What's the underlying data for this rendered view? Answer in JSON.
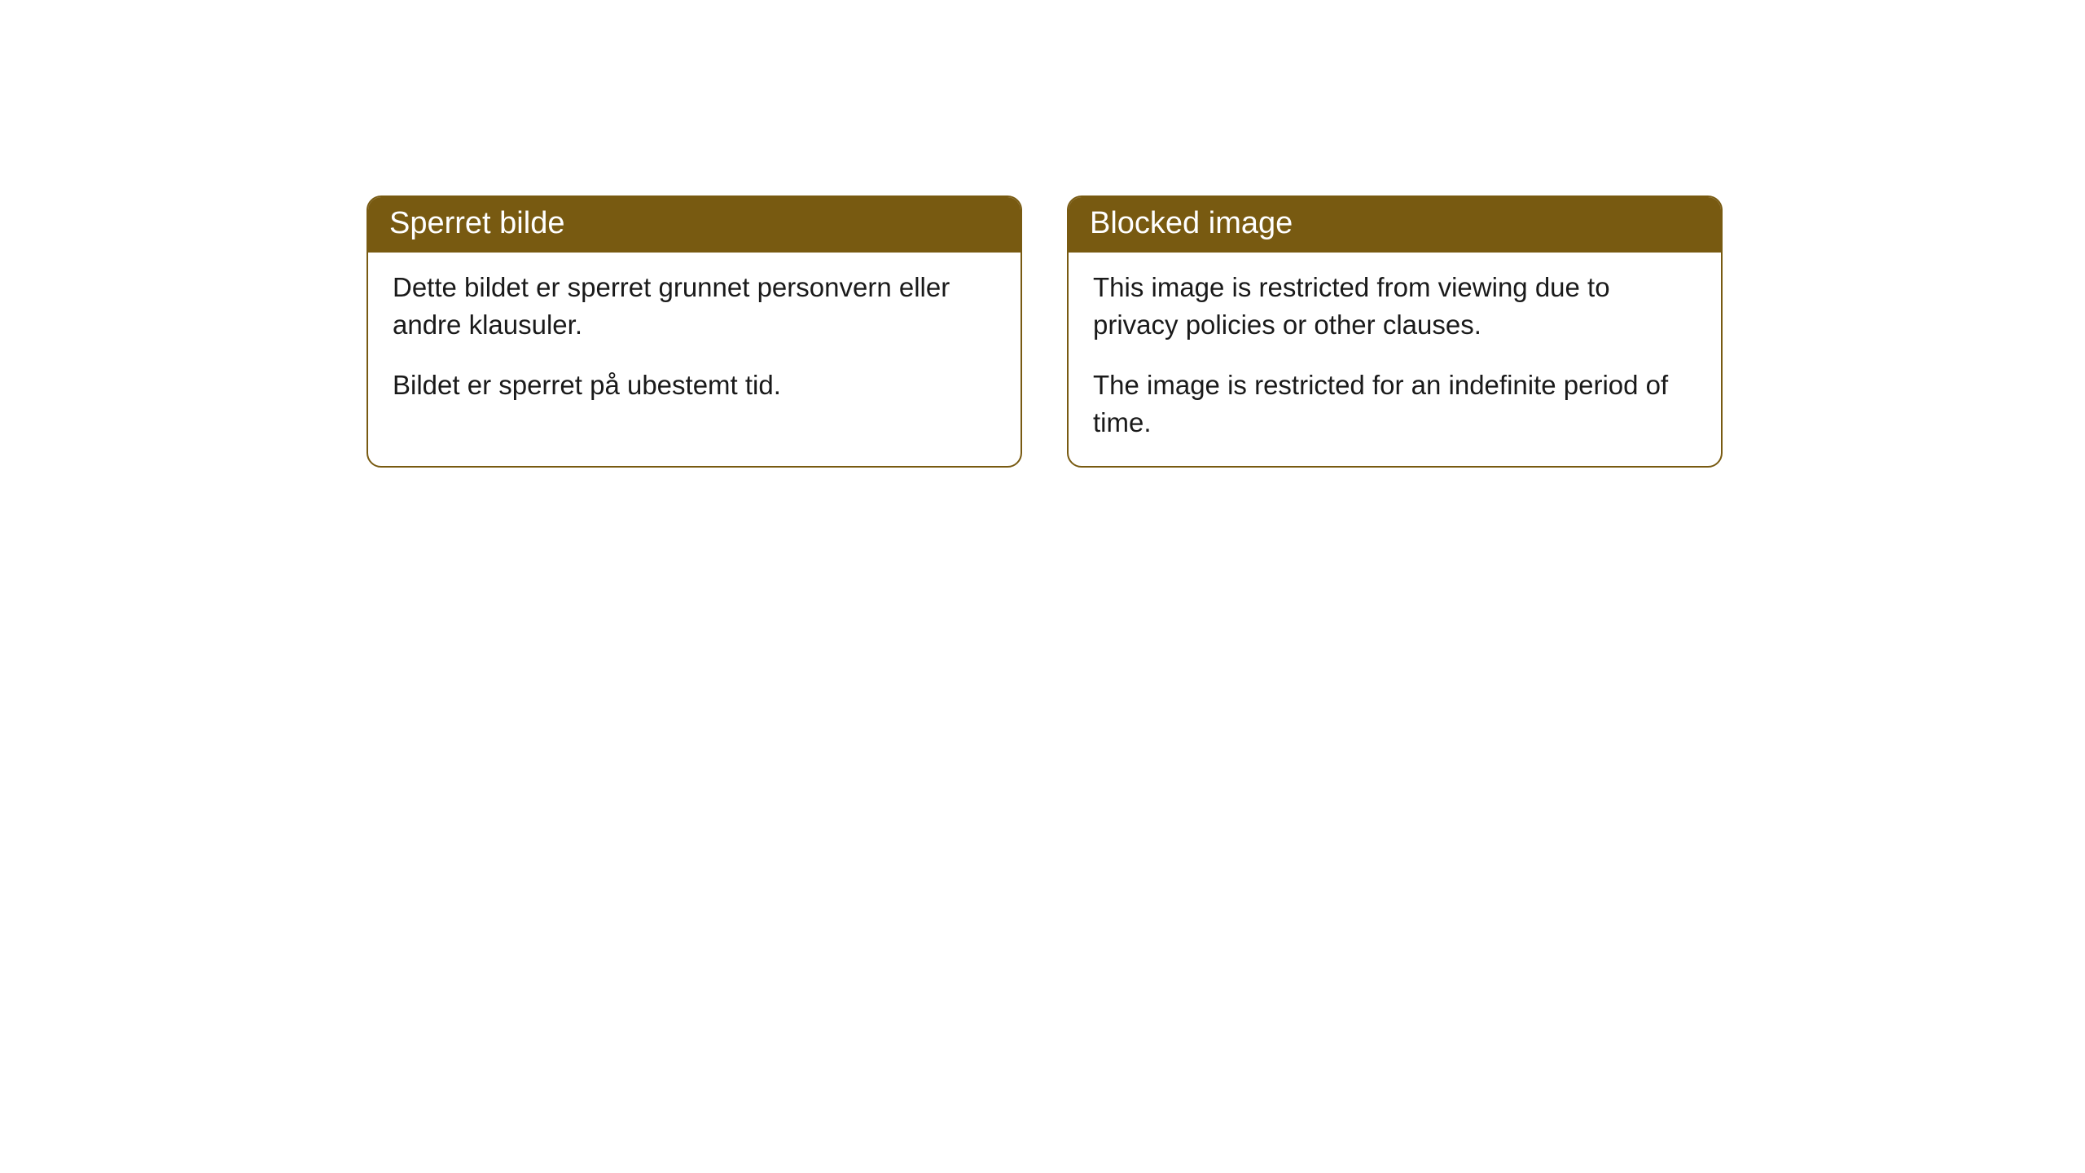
{
  "styling": {
    "header_bg_color": "#785a11",
    "header_text_color": "#ffffff",
    "border_color": "#785a11",
    "body_text_color": "#1a1a1a",
    "background_color": "#ffffff",
    "header_fontsize": 38,
    "body_fontsize": 33,
    "border_radius": 18
  },
  "notices": [
    {
      "header": "Sperret bilde",
      "paragraph1": "Dette bildet er sperret grunnet personvern eller andre klausuler.",
      "paragraph2": "Bildet er sperret på ubestemt tid."
    },
    {
      "header": "Blocked image",
      "paragraph1": "This image is restricted from viewing due to privacy policies or other clauses.",
      "paragraph2": "The image is restricted for an indefinite period of time."
    }
  ]
}
